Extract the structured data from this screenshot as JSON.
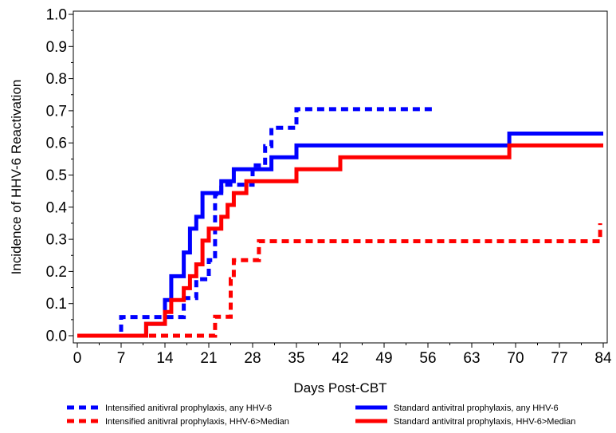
{
  "chart_data": {
    "type": "line",
    "title": "",
    "xlabel": "Days Post-CBT",
    "ylabel": "Incidence of HHV-6 Reactivation",
    "xlim": [
      0,
      84
    ],
    "ylim": [
      0,
      1.0
    ],
    "x_ticks": [
      0,
      7,
      14,
      21,
      28,
      35,
      42,
      49,
      56,
      63,
      70,
      77,
      84
    ],
    "y_ticks": [
      "0.0",
      "0.1",
      "0.2",
      "0.3",
      "0.4",
      "0.5",
      "0.6",
      "0.7",
      "0.8",
      "0.9",
      "1.0"
    ],
    "step": true,
    "grid": false,
    "legend_position": "bottom",
    "series": [
      {
        "name": "Intensified anitivral prophylaxis, any HHV-6",
        "color": "#0000ff",
        "dash": true,
        "x": [
          0,
          7,
          13,
          14,
          17,
          18,
          19,
          20,
          21,
          22,
          23,
          24,
          26,
          27,
          28,
          29,
          30,
          31,
          33,
          35,
          57
        ],
        "y": [
          0,
          0.058,
          0.058,
          0.058,
          0.117,
          0.117,
          0.176,
          0.176,
          0.235,
          0.44,
          0.47,
          0.47,
          0.47,
          0.47,
          0.53,
          0.53,
          0.59,
          0.647,
          0.647,
          0.705,
          0.705
        ]
      },
      {
        "name": "Intensified anitivral prophylaxis, HHV-6>Median",
        "color": "#ff0000",
        "dash": true,
        "x": [
          0,
          21,
          22,
          24,
          24.5,
          25,
          28,
          29,
          83,
          83.5
        ],
        "y": [
          0,
          0,
          0.059,
          0.059,
          0.176,
          0.235,
          0.235,
          0.294,
          0.294,
          0.35
        ]
      },
      {
        "name": "Standard antivitral prophylaxis, any HHV-6",
        "color": "#0000ff",
        "dash": false,
        "x": [
          0,
          11,
          14,
          15,
          17,
          18,
          19,
          20,
          21,
          23,
          25,
          28,
          31,
          35,
          69,
          84
        ],
        "y": [
          0,
          0.037,
          0.111,
          0.185,
          0.259,
          0.333,
          0.37,
          0.444,
          0.444,
          0.481,
          0.518,
          0.518,
          0.555,
          0.592,
          0.629,
          0.629
        ]
      },
      {
        "name": "Standard antivitral prophylaxis, HHV-6>Median",
        "color": "#ff0000",
        "dash": false,
        "x": [
          0,
          11,
          14,
          15,
          17,
          18,
          19,
          20,
          21,
          22,
          23,
          24,
          25,
          27,
          28,
          35,
          42,
          69,
          84
        ],
        "y": [
          0,
          0.037,
          0.074,
          0.111,
          0.148,
          0.185,
          0.222,
          0.296,
          0.333,
          0.333,
          0.37,
          0.407,
          0.444,
          0.481,
          0.481,
          0.518,
          0.555,
          0.592,
          0.592
        ]
      }
    ]
  }
}
